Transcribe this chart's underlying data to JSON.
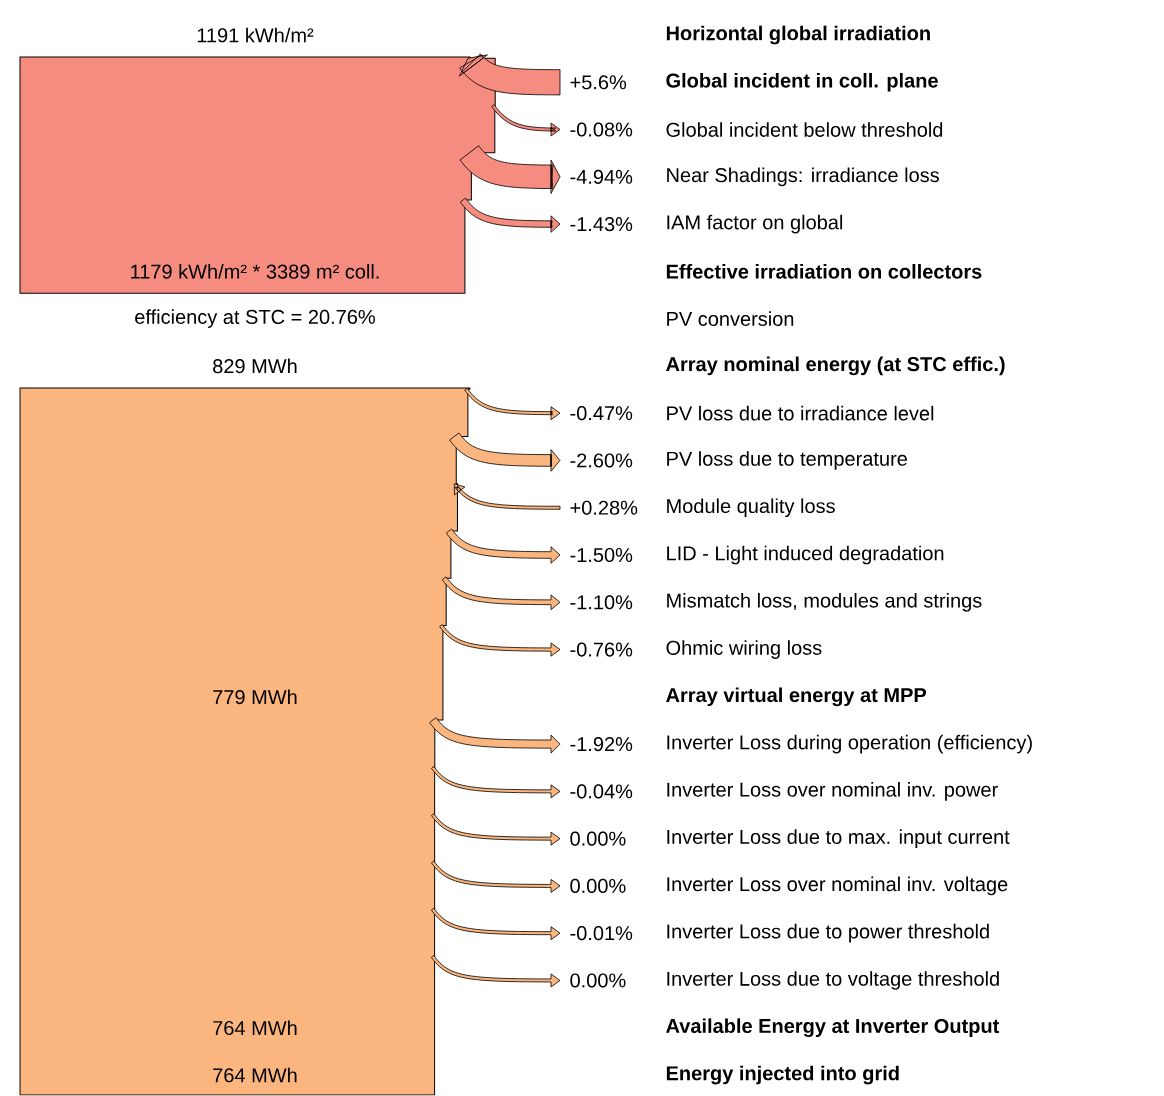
{
  "chart_data": {
    "type": "other",
    "categories": [
      "**Horizontal global irradiation**",
      "**Global incident in coll. plane**",
      "Global incident below threshold",
      "Near Shadings: irradiance loss",
      "IAM factor on global",
      "**Effective irradiation on collectors**",
      "PV conversion",
      "**Array nominal energy (at STC effic.)**",
      "PV loss due to irradiance level",
      "PV loss due to temperature",
      "Module quality loss",
      "LID - Light induced degradation",
      "Mismatch loss, modules and strings",
      "Ohmic wiring loss",
      "**Array virtual energy at MPP**",
      "Inverter Loss during operation (efficiency)",
      "Inverter Loss over nominal inv. power",
      "Inverter Loss due to max. input current",
      "Inverter Loss over nominal inv. voltage",
      "Inverter Loss due to power threshold",
      "Inverter Loss due to voltage threshold",
      "**Available Energy at Inverter Output**",
      "**Energy injected into grid**"
    ],
    "series": [
      {
        "color": "#f68b80",
        "values": [
          null,
          5.6,
          -0.08,
          -4.94,
          -1.43,
          null,
          null,
          null,
          null,
          null,
          null,
          null,
          null,
          null,
          null,
          null,
          null,
          null,
          null,
          null,
          null,
          null,
          null
        ],
        "value_labels": [
          null,
          "+5.6%",
          "-0.08%",
          "-4.94%",
          "-1.43%",
          null,
          null,
          null,
          null,
          null,
          null,
          null,
          null,
          null,
          null,
          null,
          null,
          null,
          null,
          null,
          null,
          null,
          null
        ]
      },
      {
        "color": "#fbb57e",
        "values": [
          null,
          null,
          null,
          null,
          null,
          null,
          null,
          null,
          -0.47,
          -2.6,
          0.28,
          -1.5,
          -1.1,
          -0.76,
          null,
          -1.92,
          -0.04,
          0.0,
          0.0,
          -0.01,
          0.0,
          null,
          null
        ],
        "value_labels": [
          null,
          null,
          null,
          null,
          null,
          null,
          null,
          null,
          "-0.47%",
          "-2.60%",
          "+0.28%",
          "-1.50%",
          "-1.10%",
          "-0.76%",
          null,
          "-1.92%",
          "-0.04%",
          "0.00%",
          "0.00%",
          "-0.01%",
          "0.00%",
          null,
          null
        ]
      },
      {
        "colors": [
          "#f68b80",
          null,
          null,
          null,
          null,
          "#f68b80",
          null,
          "#fbb57e",
          null,
          null,
          null,
          null,
          null,
          null,
          "#fbb57e",
          null,
          null,
          null,
          null,
          null,
          null,
          "#fbb57e",
          "#fbb57e"
        ],
        "values": [
          1191,
          null,
          null,
          null,
          null,
          1179,
          20.76,
          829,
          null,
          null,
          null,
          null,
          null,
          null,
          779,
          null,
          null,
          null,
          null,
          null,
          null,
          764,
          764
        ],
        "value_labels": [
          "1191 kWh/m²",
          null,
          null,
          null,
          null,
          "1179 kWh/m² * 3389 m² coll.",
          "efficiency at STC = 20.76%",
          "829 MWh",
          null,
          null,
          null,
          null,
          null,
          null,
          "779 MWh",
          null,
          null,
          null,
          null,
          null,
          null,
          "764 MWh",
          "764 MWh"
        ]
      }
    ]
  }
}
